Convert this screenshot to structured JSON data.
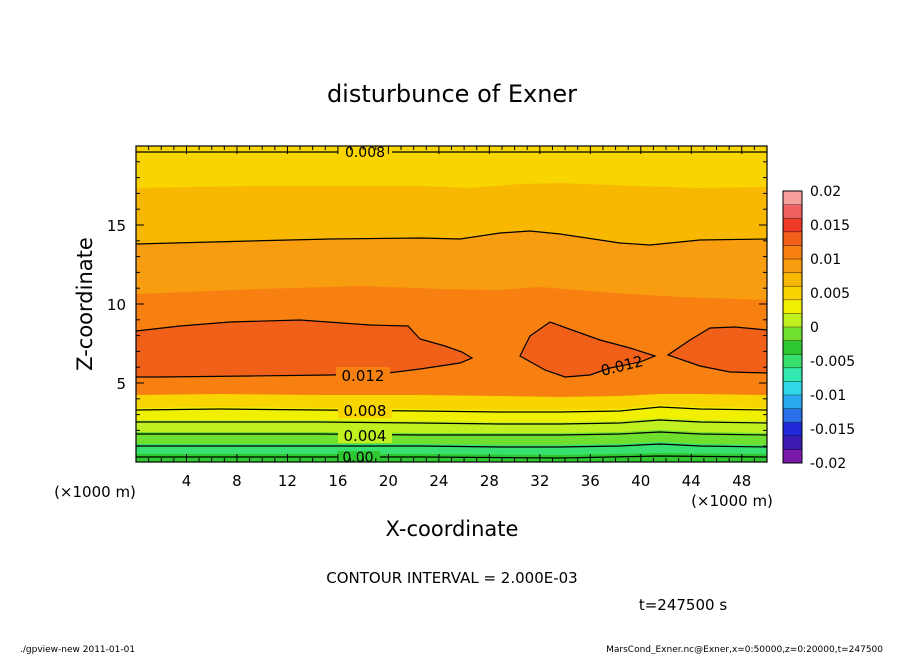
{
  "chart_data": {
    "type": "heatmap",
    "title": "disturbunce of Exner",
    "xlabel": "X-coordinate",
    "ylabel": "Z-coordinate",
    "x_unit": "(×1000 m)",
    "y_unit": "(×1000 m)",
    "xlim": [
      0,
      50
    ],
    "ylim": [
      0,
      20
    ],
    "x_ticks": [
      "4",
      "8",
      "12",
      "16",
      "20",
      "24",
      "28",
      "32",
      "36",
      "40",
      "44",
      "48"
    ],
    "y_ticks": [
      "5",
      "10",
      "15"
    ],
    "colorbar": {
      "min": -0.02,
      "max": 0.02,
      "tick_labels": [
        "0.02",
        "0.015",
        "0.01",
        "0.005",
        "0",
        "-0.005",
        "-0.01",
        "-0.015",
        "-0.02"
      ],
      "colors": [
        "#7a1aa8",
        "#3a1ab0",
        "#2028d8",
        "#2a6fe8",
        "#2aa8f0",
        "#30d8e8",
        "#30e8b0",
        "#38e070",
        "#30c830",
        "#70e030",
        "#c0f020",
        "#f0f000",
        "#f8d400",
        "#f8b800",
        "#f89c10",
        "#f88010",
        "#f06018",
        "#f03a28",
        "#f06060",
        "#f8a0a0"
      ]
    },
    "contour_interval_text": "CONTOUR INTERVAL = 2.000E-03",
    "contour_labels": [
      "0.008",
      "0.012",
      "0.012",
      "0.008",
      "0.004",
      "0.00"
    ],
    "bands_by_height_km": [
      {
        "z": [
          0,
          0.6
        ],
        "value": 0.0
      },
      {
        "z": [
          0.6,
          1.3
        ],
        "value": 0.002
      },
      {
        "z": [
          1.3,
          2.0
        ],
        "value": 0.003
      },
      {
        "z": [
          2.0,
          2.6
        ],
        "value": 0.004
      },
      {
        "z": [
          2.6,
          3.3
        ],
        "value": 0.006
      },
      {
        "z": [
          3.3,
          4.0
        ],
        "value": 0.008
      },
      {
        "z": [
          4.0,
          5.3
        ],
        "value": 0.011
      },
      {
        "z": [
          5.3,
          8.5
        ],
        "value": 0.013
      },
      {
        "z": [
          8.5,
          13.8
        ],
        "value": 0.011
      },
      {
        "z": [
          13.8,
          17.5
        ],
        "value": 0.01
      },
      {
        "z": [
          17.5,
          19.5
        ],
        "value": 0.009
      },
      {
        "z": [
          19.5,
          20
        ],
        "value": 0.007
      }
    ],
    "time_text": "t=247500 s"
  },
  "footer": {
    "left": "./gpview-new   2011-01-01",
    "right": "MarsCond_Exner.nc@Exner,x=0:50000,z=0:20000,t=247500"
  }
}
